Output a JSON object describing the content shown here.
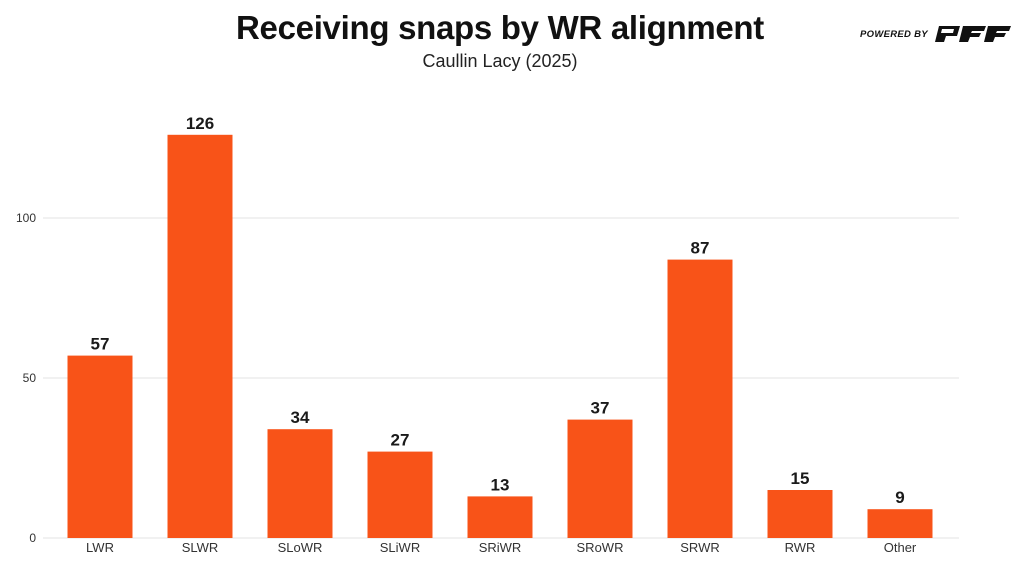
{
  "header": {
    "title": "Receiving snaps by WR alignment",
    "subtitle": "Caullin Lacy (2025)",
    "branding": {
      "text": "POWERED BY",
      "logo": "PFF"
    }
  },
  "colors": {
    "bar": "#F85318",
    "grid": "#E3E3E3",
    "text": "#111111"
  },
  "chart_data": {
    "type": "bar",
    "title": "Receiving snaps by WR alignment",
    "subtitle": "Caullin Lacy (2025)",
    "xlabel": "",
    "ylabel": "",
    "categories": [
      "LWR",
      "SLWR",
      "SLoWR",
      "SLiWR",
      "SRiWR",
      "SRoWR",
      "SRWR",
      "RWR",
      "Other"
    ],
    "values": [
      57,
      126,
      34,
      27,
      13,
      37,
      87,
      15,
      9
    ],
    "data_labels": [
      "57",
      "126",
      "34",
      "27",
      "13",
      "37",
      "87",
      "15",
      "9"
    ],
    "ylim": [
      0,
      128
    ],
    "yticks": [
      0,
      50,
      100
    ],
    "ytick_labels": [
      "0",
      "50",
      "100"
    ],
    "grid": true,
    "legend": "none"
  }
}
